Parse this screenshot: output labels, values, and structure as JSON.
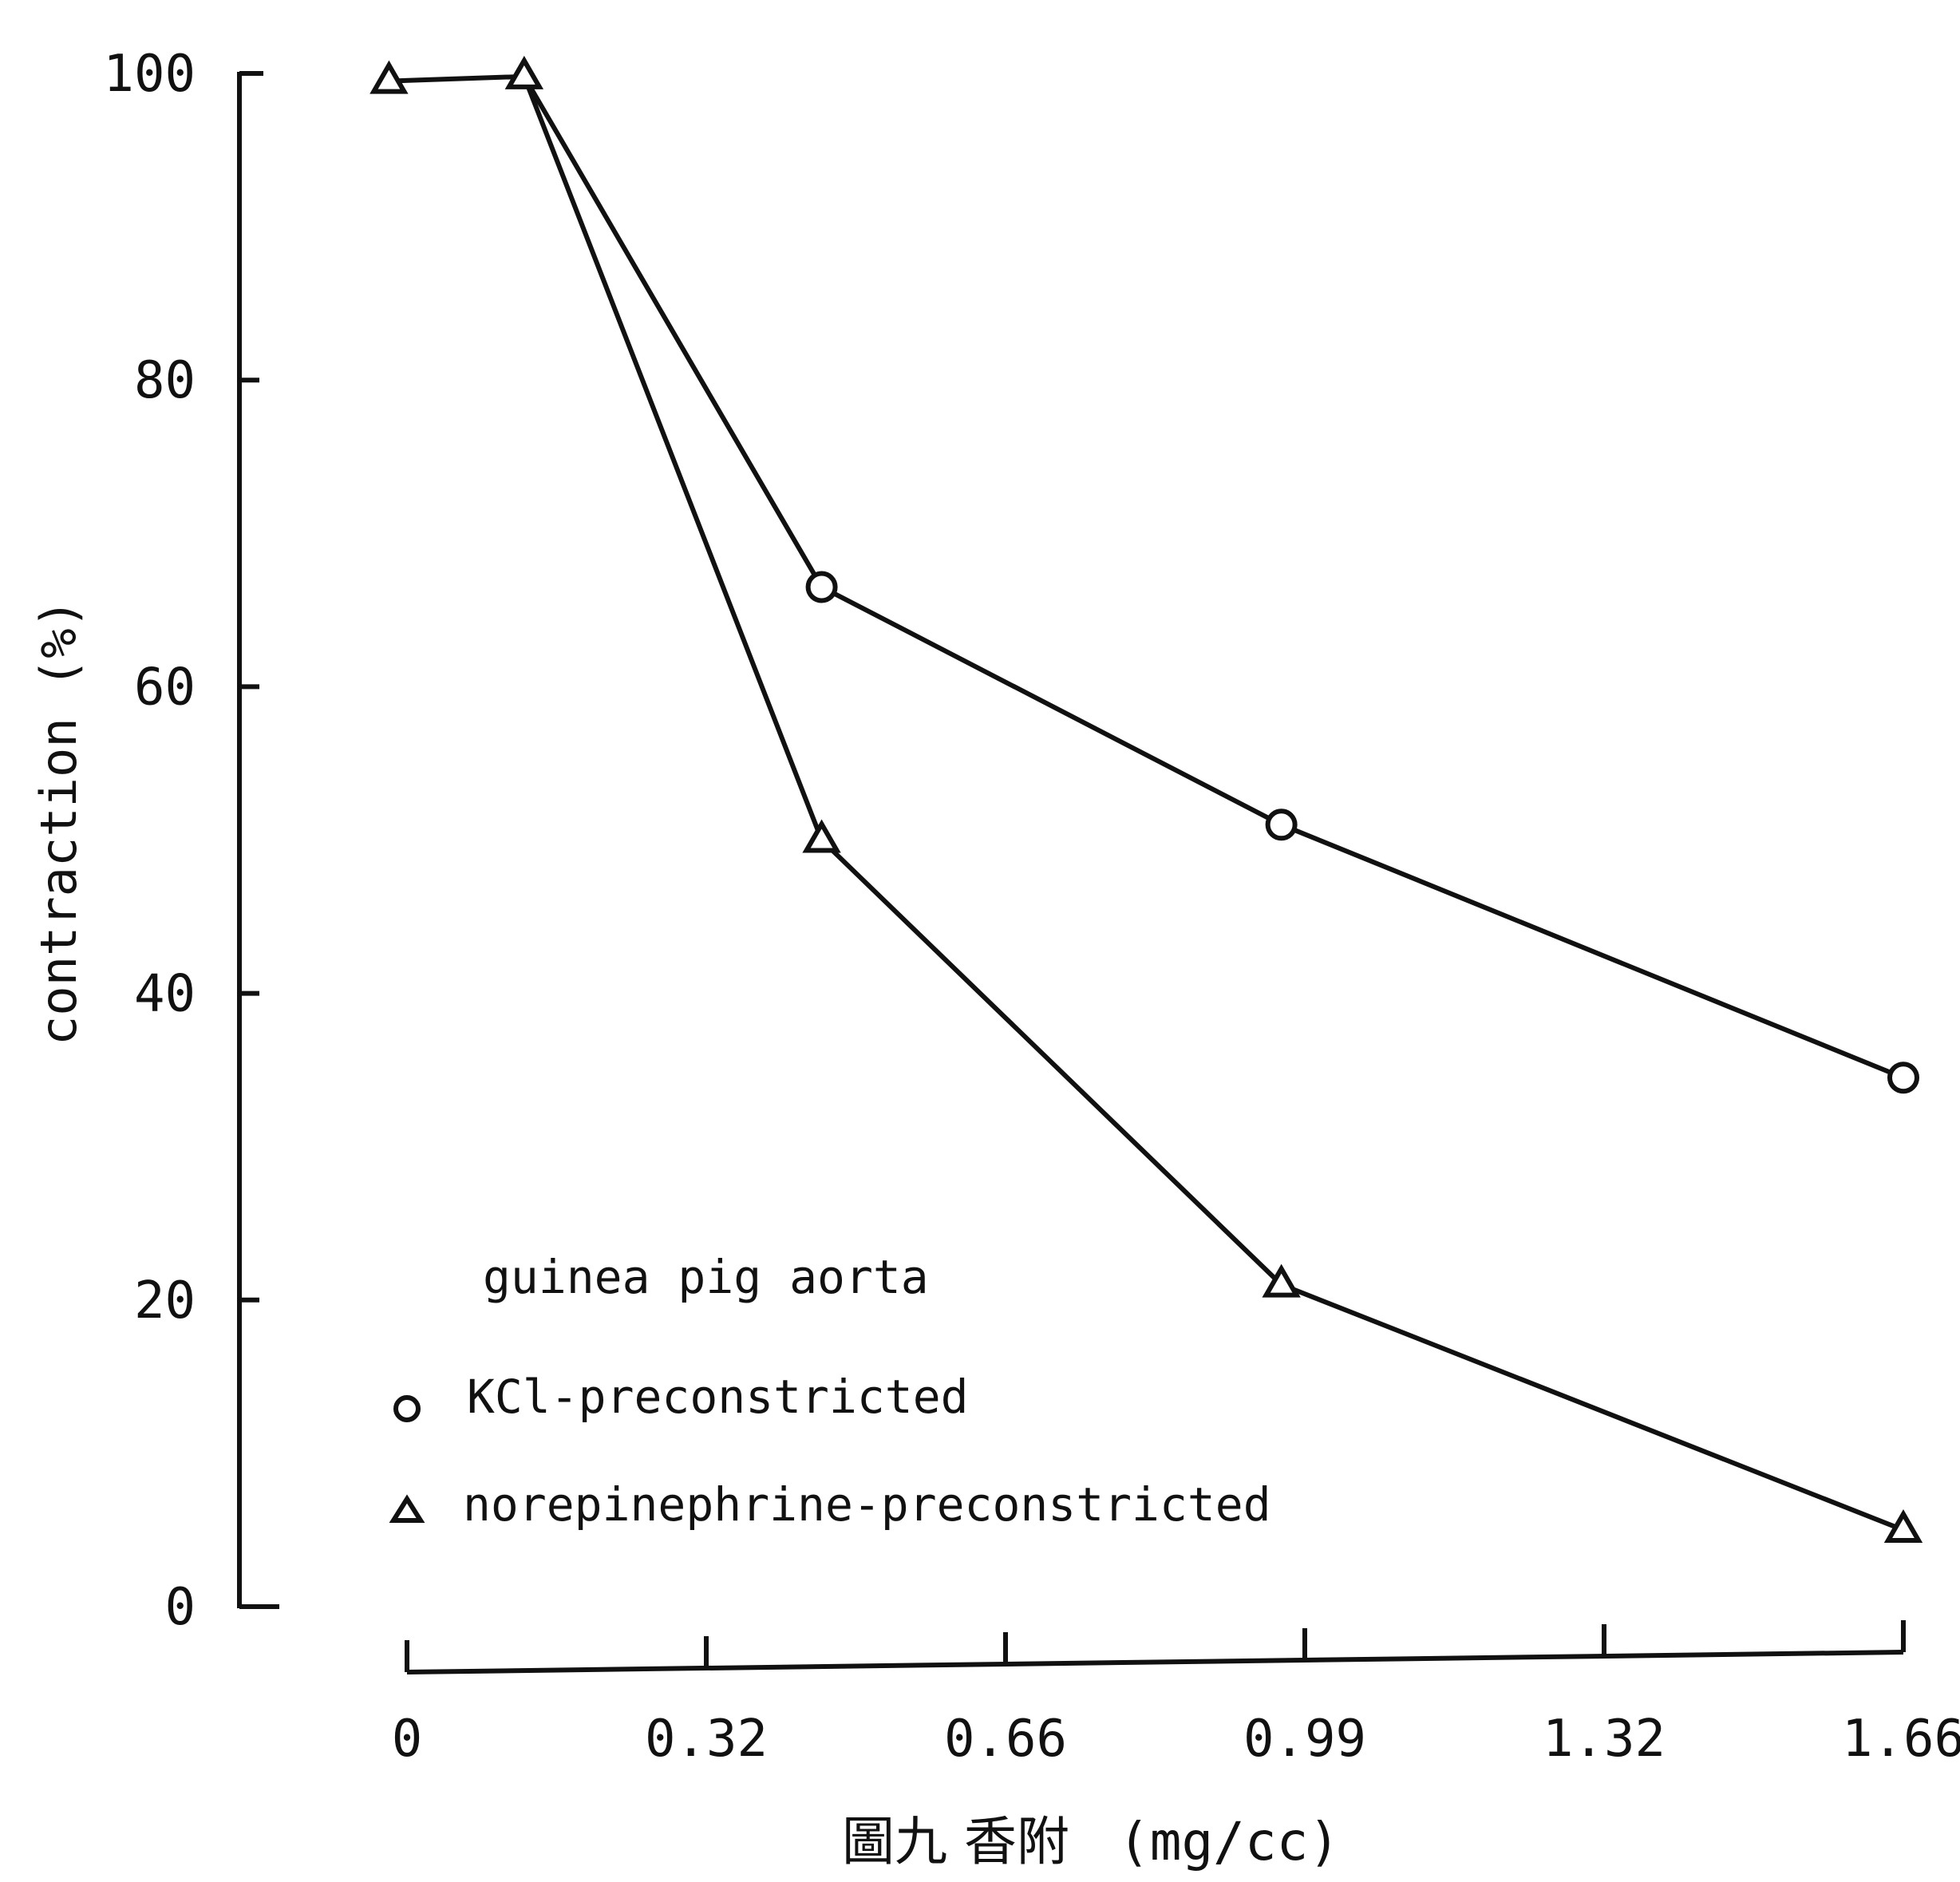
{
  "chart_data": {
    "type": "line",
    "x": [
      -0.02,
      0.13,
      0.46,
      0.97,
      1.66
    ],
    "x_tick_labels": [
      "0",
      "0.32",
      "0.66",
      "0.99",
      "1.32",
      "1.66"
    ],
    "y_tick_labels": [
      "0",
      "20",
      "40",
      "60",
      "80",
      "100"
    ],
    "ylabel": "contraction (%)",
    "xlabel_prefix": "圖九 香附",
    "xlabel_units": "(mg/cc)",
    "ylim": [
      0,
      100
    ],
    "grid": false,
    "legend": {
      "title": "guinea pig aorta",
      "placement": "bottom-left"
    },
    "series": [
      {
        "name": "KCl-preconstricted",
        "marker": "circle",
        "x": [
          0.46,
          0.97,
          1.66
        ],
        "values": [
          66.5,
          51,
          34.5
        ]
      },
      {
        "name": "norepinephrine-preconstricted",
        "marker": "triangle",
        "x": [
          -0.02,
          0.13,
          0.46,
          0.97,
          1.66
        ],
        "values": [
          99.5,
          99.8,
          50,
          21,
          5
        ]
      }
    ],
    "kcl_line_from": [
      0.13,
      99.8
    ]
  }
}
